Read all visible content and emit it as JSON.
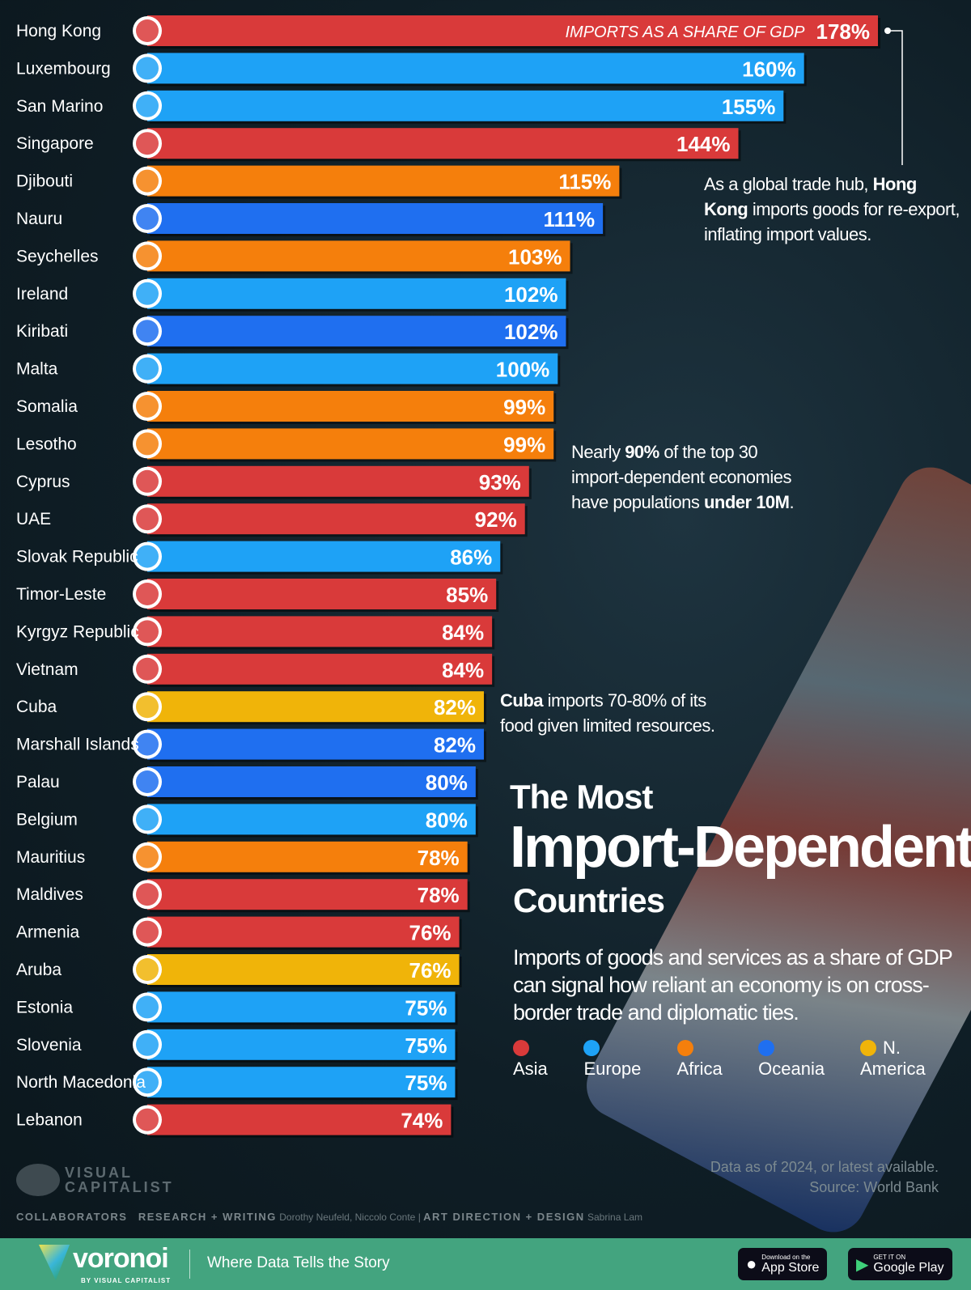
{
  "colors": {
    "Asia": "#d93a3a",
    "Europe": "#1ea2f6",
    "Africa": "#f57f0c",
    "Oceania": "#1f6ff0",
    "N. America": "#f0b409"
  },
  "chart_data": {
    "type": "bar",
    "orientation": "horizontal",
    "title": "The Most Import-Dependent Countries",
    "value_label": "IMPORTS AS A SHARE OF GDP",
    "unit": "%",
    "xlim": [
      0,
      178
    ],
    "categories": [
      "Hong Kong",
      "Luxembourg",
      "San Marino",
      "Singapore",
      "Djibouti",
      "Nauru",
      "Seychelles",
      "Ireland",
      "Kiribati",
      "Malta",
      "Somalia",
      "Lesotho",
      "Cyprus",
      "UAE",
      "Slovak Republic",
      "Timor-Leste",
      "Kyrgyz Republic",
      "Vietnam",
      "Cuba",
      "Marshall Islands",
      "Palau",
      "Belgium",
      "Mauritius",
      "Maldives",
      "Armenia",
      "Aruba",
      "Estonia",
      "Slovenia",
      "North Macedonia",
      "Lebanon"
    ],
    "values": [
      178,
      160,
      155,
      144,
      115,
      111,
      103,
      102,
      102,
      100,
      99,
      99,
      93,
      92,
      86,
      85,
      84,
      84,
      82,
      82,
      80,
      80,
      78,
      78,
      76,
      76,
      75,
      75,
      75,
      74
    ],
    "regions": [
      "Asia",
      "Europe",
      "Europe",
      "Asia",
      "Africa",
      "Oceania",
      "Africa",
      "Europe",
      "Oceania",
      "Europe",
      "Africa",
      "Africa",
      "Asia",
      "Asia",
      "Europe",
      "Asia",
      "Asia",
      "Asia",
      "N. America",
      "Oceania",
      "Oceania",
      "Europe",
      "Africa",
      "Asia",
      "Asia",
      "N. America",
      "Europe",
      "Europe",
      "Europe",
      "Asia"
    ],
    "legend": [
      "Asia",
      "Europe",
      "Africa",
      "Oceania",
      "N. America"
    ],
    "legend_placement": "bottom-right"
  },
  "title": {
    "line1": "The Most",
    "line2": "Import-Dependent",
    "line3": "Countries"
  },
  "subtitle": "Imports of goods and services as a share of GDP can signal how reliant an economy is on cross-border trade and diplomatic ties.",
  "annotations": {
    "hk": {
      "pre": "As a global trade hub, ",
      "bold": "Hong Kong",
      "post": " imports goods for re-export, inflating import values."
    },
    "pop": {
      "pre": "Nearly ",
      "bold1": "90%",
      "mid": " of the top 30 import-dependent economies have populations ",
      "bold2": "under 10M",
      "post": "."
    },
    "cuba": {
      "bold": "Cuba",
      "post": " imports 70-80% of its food given limited resources."
    }
  },
  "source": {
    "line1": "Data as of 2024, or latest available.",
    "line2": "Source: World Bank"
  },
  "brand": {
    "vc_line1": "VISUAL",
    "vc_line2": "CAPITALIST",
    "voronoi": "voronoi",
    "voronoi_by": "BY VISUAL CAPITALIST",
    "tagline": "Where Data Tells the Story",
    "appstore_small": "Download on the",
    "appstore_big": "App Store",
    "gplay_small": "GET IT ON",
    "gplay_big": "Google Play"
  },
  "credits": {
    "label": "COLLABORATORS",
    "research_label": "RESEARCH + WRITING",
    "research": "Dorothy Neufeld, Niccolo Conte",
    "sep": "|",
    "design_label": "ART DIRECTION + DESIGN",
    "design": "Sabrina Lam"
  }
}
